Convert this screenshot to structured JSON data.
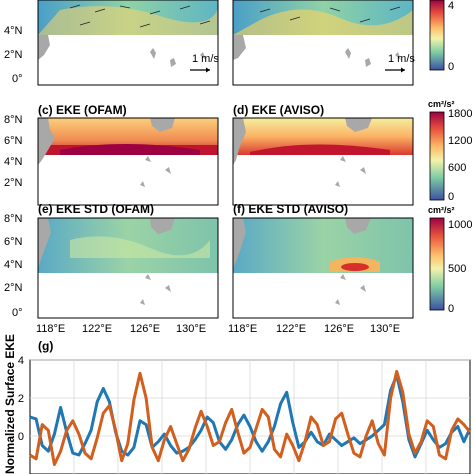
{
  "colors": {
    "land": "#a8a8a8",
    "series_1": "#1f77b4",
    "series_2": "#d35f1e"
  },
  "panels": {
    "c_title": "(c) EKE (OFAM)",
    "d_title": "(d) EKE (AVISO)",
    "e_title": "(e) EKE STD (OFAM)",
    "f_title": "(f) EKE STD (AVISO)",
    "g_title": "(g)"
  },
  "maps": {
    "lat_ticks": [
      "8°N",
      "6°N",
      "4°N",
      "2°N",
      "0°"
    ],
    "top_lat_ticks": [
      "4°N",
      "2°N",
      "0°"
    ],
    "lon_ticks": [
      "118°E",
      "122°E",
      "126°E",
      "130°E"
    ],
    "vector_scale": "1 m/s"
  },
  "colorbars": {
    "top": {
      "ticks": [
        "4",
        "0"
      ]
    },
    "eke": {
      "unit": "cm²/s²",
      "ticks": [
        "1800",
        "1200",
        "600",
        "0"
      ]
    },
    "std": {
      "unit": "cm²/s²",
      "ticks": [
        "1000",
        "500",
        "0"
      ]
    }
  },
  "chart_data": {
    "type": "line",
    "ylabel": "Normalized Surface EKE",
    "ylim": [
      -2,
      4
    ],
    "yticks": [
      4,
      2,
      0
    ],
    "grid": true,
    "series": [
      {
        "values": [
          1.0,
          0.9,
          -0.5,
          -0.8,
          0.1,
          1.5,
          0.2,
          -0.9,
          -1.0,
          -0.4,
          0.3,
          1.8,
          2.5,
          1.8,
          0.2,
          -0.8,
          -1.0,
          -0.6,
          0.8,
          0.6,
          -0.6,
          -0.3,
          0.1,
          -0.5,
          -0.9,
          -0.8,
          -0.6,
          -0.2,
          0.3,
          1.0,
          0.7,
          -0.3,
          -0.7,
          -0.2,
          0.6,
          1.1,
          0.5,
          -0.3,
          -0.8,
          -0.3,
          0.5,
          1.7,
          2.3,
          0.7,
          -0.6,
          -0.3,
          0.2,
          -0.3,
          -0.5,
          0.1,
          -0.2,
          -0.5,
          -0.3,
          -0.1,
          -0.4,
          -0.2,
          0.0,
          0.3,
          0.6,
          2.4,
          3.2,
          1.8,
          -0.2,
          -1.1,
          -0.4,
          0.3,
          -0.2,
          -0.6,
          -0.4,
          0.2,
          0.5,
          -0.3,
          0.4
        ]
      },
      {
        "values": [
          -1.0,
          -1.2,
          0.6,
          0.3,
          -1.5,
          -0.8,
          0.3,
          0.8,
          0.1,
          -0.9,
          -1.2,
          -0.1,
          1.2,
          1.6,
          0.3,
          -1.3,
          -0.4,
          1.9,
          3.3,
          2.0,
          -0.6,
          -1.3,
          -0.2,
          0.5,
          -0.4,
          -1.3,
          -0.7,
          0.4,
          1.3,
          0.5,
          -0.5,
          -0.3,
          0.7,
          1.4,
          0.2,
          -0.9,
          -0.6,
          0.4,
          1.4,
          1.0,
          -0.7,
          -1.1,
          0.1,
          -0.5,
          -1.3,
          -0.3,
          1.0,
          0.6,
          -0.5,
          -0.3,
          0.9,
          1.2,
          0.1,
          -0.9,
          -1.1,
          0.0,
          0.8,
          -0.4,
          -1.0,
          2.0,
          3.4,
          2.3,
          0.1,
          -0.9,
          -0.3,
          0.8,
          0.5,
          -1.0,
          -1.2,
          0.3,
          0.9,
          0.6,
          0.2
        ]
      }
    ]
  }
}
